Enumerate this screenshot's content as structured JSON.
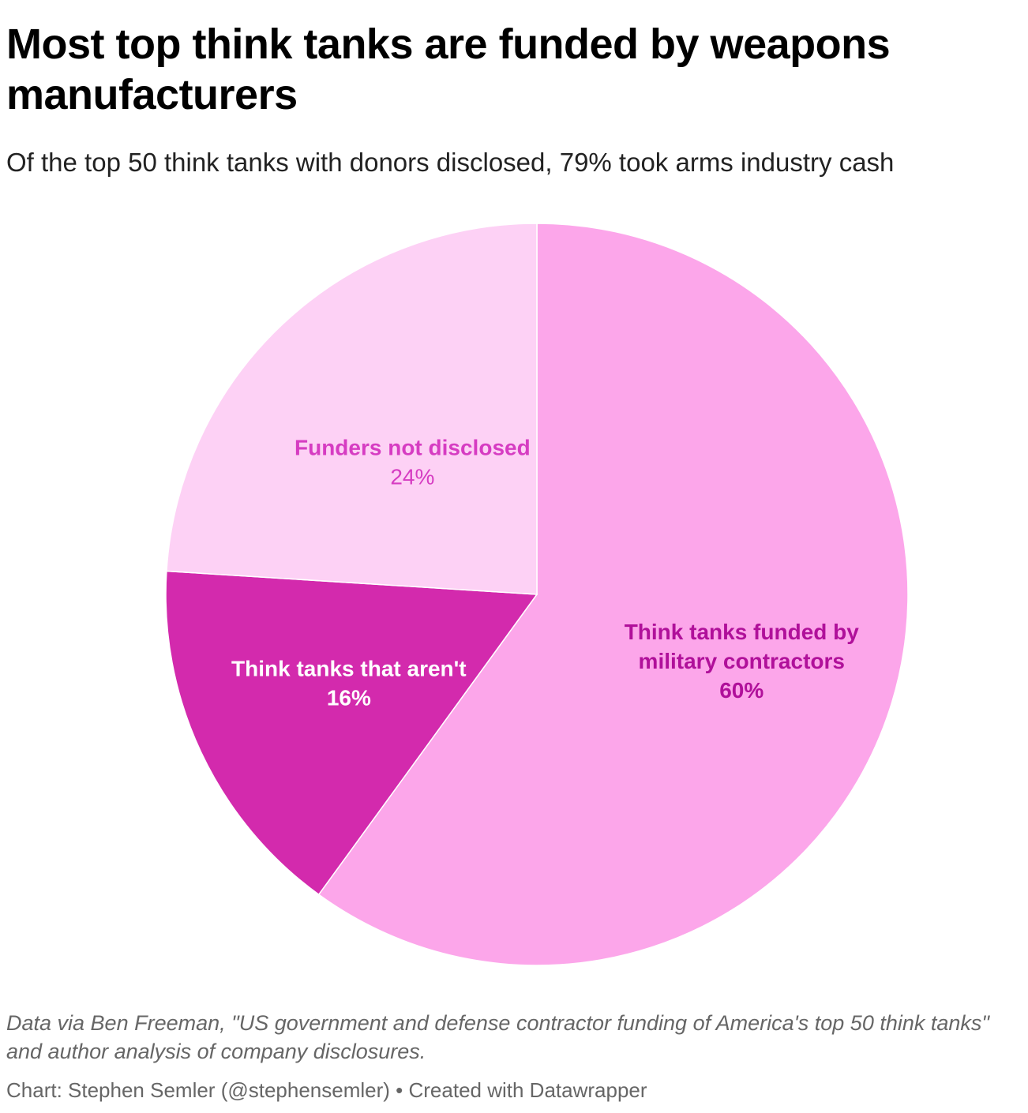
{
  "title": "Most top think tanks are funded by weapons manufacturers",
  "subtitle": "Of the top 50 think tanks with donors disclosed, 79% took arms industry cash",
  "chart_data": {
    "type": "pie",
    "title": "Most top think tanks are funded by weapons manufacturers",
    "subtitle": "Of the top 50 think tanks with donors disclosed, 79% took arms industry cash",
    "slices": [
      {
        "label": "Think tanks funded by military contractors",
        "value": 60,
        "value_label": "60%",
        "color": "#fca6ea",
        "label_color": "#b0109a"
      },
      {
        "label": "Think tanks that aren't",
        "value": 16,
        "value_label": "16%",
        "color": "#d32aad",
        "label_color": "#ffffff"
      },
      {
        "label": "Funders not disclosed",
        "value": 24,
        "value_label": "24%",
        "color": "#fdd1f5",
        "label_color": "#d63cc2"
      }
    ],
    "start_angle": "12 o'clock",
    "direction": "clockwise",
    "legend": "none (direct labels)"
  },
  "notes": "Data via Ben Freeman, \"US government and defense contractor funding of America's top 50 think tanks\" and author analysis of company disclosures.",
  "byline": "Chart: Stephen Semler (@stephensemler) • Created with Datawrapper"
}
